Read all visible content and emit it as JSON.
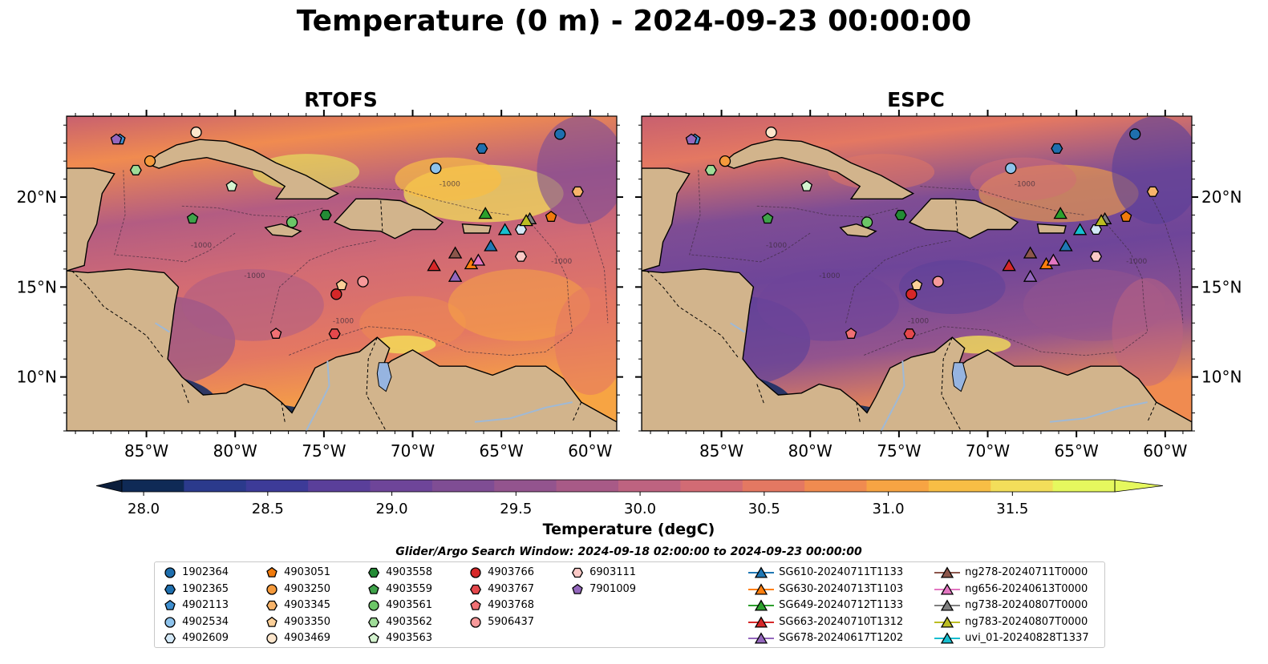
{
  "title": "Temperature (0 m) - 2024-09-23 00:00:00",
  "panels": [
    {
      "title": "RTOFS"
    },
    {
      "title": "ESPC"
    }
  ],
  "lon_ticks": [
    "85°W",
    "80°W",
    "75°W",
    "70°W",
    "65°W",
    "60°W"
  ],
  "lon_values": [
    -85,
    -80,
    -75,
    -70,
    -65,
    -60
  ],
  "lat_ticks": [
    "20°N",
    "15°N",
    "10°N"
  ],
  "lat_values": [
    20,
    15,
    10
  ],
  "extent": {
    "lon": [
      -89.5,
      -58.5
    ],
    "lat": [
      7,
      24.5
    ]
  },
  "contour_label": "-1000",
  "colorbar": {
    "label": "Temperature (degC)",
    "ticks": [
      "28.0",
      "28.5",
      "29.0",
      "29.5",
      "30.0",
      "30.5",
      "31.0",
      "31.5"
    ],
    "range": [
      28.0,
      31.5
    ],
    "colors": [
      "#0f2a56",
      "#2b3a8c",
      "#3d3b98",
      "#5a3f9a",
      "#6e4599",
      "#7f4d94",
      "#93548e",
      "#a85a87",
      "#be6380",
      "#d26b74",
      "#e47862",
      "#f08b50",
      "#f7a443",
      "#f8be45",
      "#f3de5a",
      "#e6f85e"
    ]
  },
  "search_window": "Glider/Argo Search Window: 2024-09-18 02:00:00 to 2024-09-23 00:00:00",
  "legend": [
    {
      "label": "1902364",
      "marker": "circle",
      "color": "#1f6fae"
    },
    {
      "label": "1902365",
      "marker": "hexagon",
      "color": "#1f6fae"
    },
    {
      "label": "4902113",
      "marker": "pentagon",
      "color": "#3f8fcf"
    },
    {
      "label": "4902534",
      "marker": "circle",
      "color": "#8ec3ec"
    },
    {
      "label": "4902609",
      "marker": "hexagon",
      "color": "#d3e8f7"
    },
    {
      "label": "4903051",
      "marker": "pentagon",
      "color": "#f07a0c"
    },
    {
      "label": "4903250",
      "marker": "circle",
      "color": "#f59a3c"
    },
    {
      "label": "4903345",
      "marker": "hexagon",
      "color": "#f8b46a"
    },
    {
      "label": "4903350",
      "marker": "pentagon",
      "color": "#fbcf98"
    },
    {
      "label": "4903469",
      "marker": "circle",
      "color": "#fde6cc"
    },
    {
      "label": "4903558",
      "marker": "hexagon",
      "color": "#238b35"
    },
    {
      "label": "4903559",
      "marker": "pentagon",
      "color": "#3fa34a"
    },
    {
      "label": "4903561",
      "marker": "circle",
      "color": "#6cc667"
    },
    {
      "label": "4903562",
      "marker": "hexagon",
      "color": "#9fdc98"
    },
    {
      "label": "4903563",
      "marker": "pentagon",
      "color": "#d4f3cf"
    },
    {
      "label": "4903766",
      "marker": "circle",
      "color": "#d62728"
    },
    {
      "label": "4903767",
      "marker": "hexagon",
      "color": "#e5484c"
    },
    {
      "label": "4903768",
      "marker": "pentagon",
      "color": "#f07074"
    },
    {
      "label": "5906437",
      "marker": "circle",
      "color": "#f7999a"
    },
    {
      "label": "6903111",
      "marker": "hexagon",
      "color": "#fbc9c6"
    },
    {
      "label": "7901009",
      "marker": "pentagon",
      "color": "#9467bd"
    },
    {
      "label": "SG610-20240711T1133",
      "marker": "triangle",
      "color": "#1f77b4"
    },
    {
      "label": "SG630-20240713T1103",
      "marker": "triangle",
      "color": "#ff7f0e"
    },
    {
      "label": "SG649-20240712T1133",
      "marker": "triangle",
      "color": "#2ca02c"
    },
    {
      "label": "SG663-20240710T1312",
      "marker": "triangle",
      "color": "#d62728"
    },
    {
      "label": "SG678-20240617T1202",
      "marker": "triangle",
      "color": "#9467bd"
    },
    {
      "label": "ng278-20240711T0000",
      "marker": "triangle",
      "color": "#8c564b"
    },
    {
      "label": "ng656-20240613T0000",
      "marker": "triangle",
      "color": "#e377c2"
    },
    {
      "label": "ng738-20240807T0000",
      "marker": "triangle",
      "color": "#7f7f7f"
    },
    {
      "label": "ng783-20240807T0000",
      "marker": "triangle",
      "color": "#bcbd22"
    },
    {
      "label": "uvi_01-20240828T1337",
      "marker": "triangle",
      "color": "#17becf"
    }
  ],
  "markers": [
    {
      "id": "1902364",
      "lon": -61.7,
      "lat": 23.5
    },
    {
      "id": "1902365",
      "lon": -66.1,
      "lat": 22.7
    },
    {
      "id": "4902113",
      "lon": -86.5,
      "lat": 23.2
    },
    {
      "id": "4902534",
      "lon": -68.7,
      "lat": 21.6
    },
    {
      "id": "4902609",
      "lon": -63.9,
      "lat": 18.2
    },
    {
      "id": "4903051",
      "lon": -62.2,
      "lat": 18.9
    },
    {
      "id": "4903250",
      "lon": -84.8,
      "lat": 22.0
    },
    {
      "id": "4903345",
      "lon": -60.7,
      "lat": 20.3
    },
    {
      "id": "4903350",
      "lon": -74.0,
      "lat": 15.1
    },
    {
      "id": "4903469",
      "lon": -82.2,
      "lat": 23.6
    },
    {
      "id": "4903558",
      "lon": -74.9,
      "lat": 19.0
    },
    {
      "id": "4903559",
      "lon": -82.4,
      "lat": 18.8
    },
    {
      "id": "4903561",
      "lon": -76.8,
      "lat": 18.6
    },
    {
      "id": "4903562",
      "lon": -85.6,
      "lat": 21.5
    },
    {
      "id": "4903563",
      "lon": -80.2,
      "lat": 20.6
    },
    {
      "id": "4903766",
      "lon": -74.3,
      "lat": 14.6
    },
    {
      "id": "4903767",
      "lon": -74.4,
      "lat": 12.4
    },
    {
      "id": "4903768",
      "lon": -77.7,
      "lat": 12.4
    },
    {
      "id": "5906437",
      "lon": -72.8,
      "lat": 15.3
    },
    {
      "id": "6903111",
      "lon": -63.9,
      "lat": 16.7
    },
    {
      "id": "7901009",
      "lon": -86.7,
      "lat": 23.2
    },
    {
      "id": "SG610-20240711T1133",
      "lon": -65.6,
      "lat": 17.3
    },
    {
      "id": "SG630-20240713T1103",
      "lon": -66.7,
      "lat": 16.3
    },
    {
      "id": "SG649-20240712T1133",
      "lon": -65.9,
      "lat": 19.1
    },
    {
      "id": "SG663-20240710T1312",
      "lon": -68.8,
      "lat": 16.2
    },
    {
      "id": "SG678-20240617T1202",
      "lon": -67.6,
      "lat": 15.6
    },
    {
      "id": "ng278-20240711T0000",
      "lon": -67.6,
      "lat": 16.9
    },
    {
      "id": "ng656-20240613T0000",
      "lon": -66.3,
      "lat": 16.5
    },
    {
      "id": "ng738-20240807T0000",
      "lon": -63.4,
      "lat": 18.8
    },
    {
      "id": "ng783-20240807T0000",
      "lon": -63.6,
      "lat": 18.7
    },
    {
      "id": "uvi_01-20240828T1337",
      "lon": -64.8,
      "lat": 18.2
    }
  ]
}
